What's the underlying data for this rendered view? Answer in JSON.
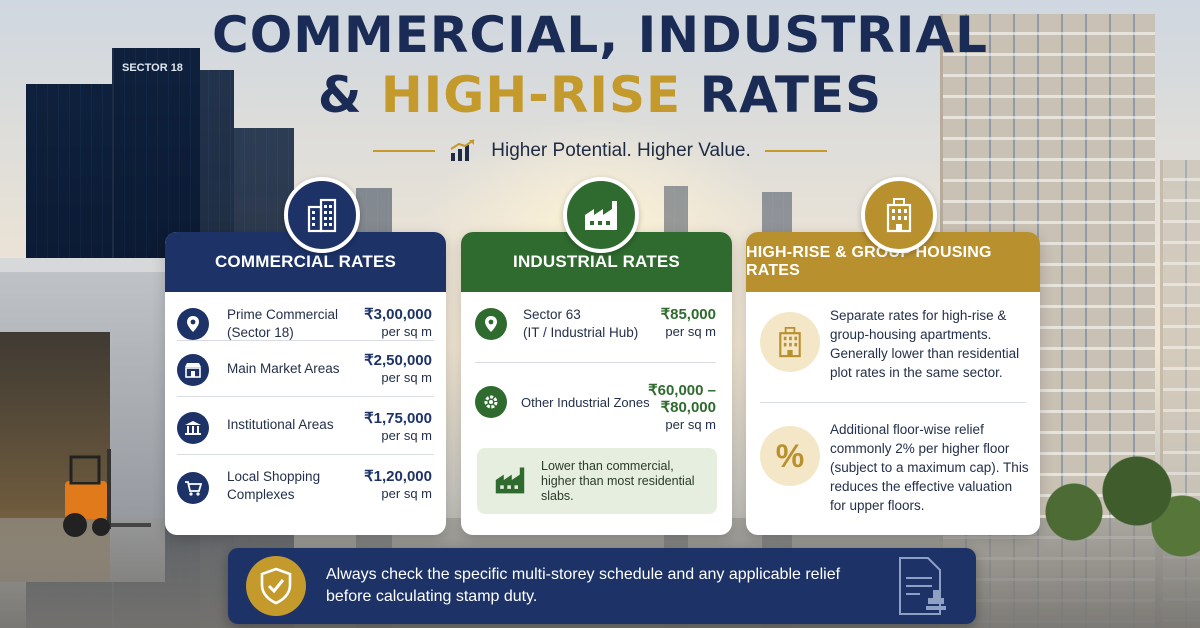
{
  "header": {
    "title_line1": "COMMERCIAL, INDUSTRIAL",
    "title_line2_prefix": "& ",
    "title_line2_highlight": "HIGH-RISE",
    "title_line2_suffix": " RATES",
    "tagline": "Higher Potential. Higher Value.",
    "tagline_icon": "growth-chart-icon"
  },
  "scene": {
    "building_sign": "SECTOR 18"
  },
  "colors": {
    "navy": "#1d3368",
    "green": "#2f6b2e",
    "gold": "#b8902e"
  },
  "commercial": {
    "title": "COMMERCIAL RATES",
    "badge_icon": "office-building-icon",
    "rows": [
      {
        "label_line1": "Prime Commercial",
        "label_line2": "(Sector 18)",
        "value": "₹3,00,000",
        "unit": "per sq m",
        "icon": "location-pin-icon"
      },
      {
        "label_line1": "Main Market Areas",
        "label_line2": "",
        "value": "₹2,50,000",
        "unit": "per sq m",
        "icon": "storefront-icon"
      },
      {
        "label_line1": "Institutional Areas",
        "label_line2": "",
        "value": "₹1,75,000",
        "unit": "per sq m",
        "icon": "institution-icon"
      },
      {
        "label_line1": "Local Shopping",
        "label_line2": "Complexes",
        "value": "₹1,20,000",
        "unit": "per sq m",
        "icon": "shopping-cart-icon"
      }
    ]
  },
  "industrial": {
    "title": "INDUSTRIAL RATES",
    "badge_icon": "factory-icon",
    "rows": [
      {
        "label_line1": "Sector 63",
        "label_line2": "(IT / Industrial Hub)",
        "value_line1": "₹85,000",
        "value_line2": "",
        "unit": "per sq m",
        "icon": "location-pin-icon"
      },
      {
        "label_line1": "Other Industrial Zones",
        "label_line2": "",
        "value_line1": "₹60,000 –",
        "value_line2": "₹80,000",
        "unit": "per sq m",
        "icon": "gear-icon"
      }
    ],
    "note": "Lower than commercial, higher than most residential slabs.",
    "note_icon": "factory-icon"
  },
  "highrise": {
    "title": "HIGH-RISE & GROUP HOUSING RATES",
    "badge_icon": "apartment-building-icon",
    "blocks": [
      {
        "text": "Separate rates for high-rise & group-housing apartments. Generally lower than residential plot rates in the same sector.",
        "icon": "apartment-building-icon"
      },
      {
        "text": "Additional floor-wise relief commonly 2% per higher floor (subject to a maximum cap). This reduces the effective valuation for upper floors.",
        "icon": "percent-icon",
        "icon_glyph": "%"
      }
    ]
  },
  "footer": {
    "text": "Always check the specific multi-storey schedule and any applicable relief before calculating stamp duty.",
    "icon": "shield-check-icon",
    "doc_icon": "document-stamp-icon"
  }
}
